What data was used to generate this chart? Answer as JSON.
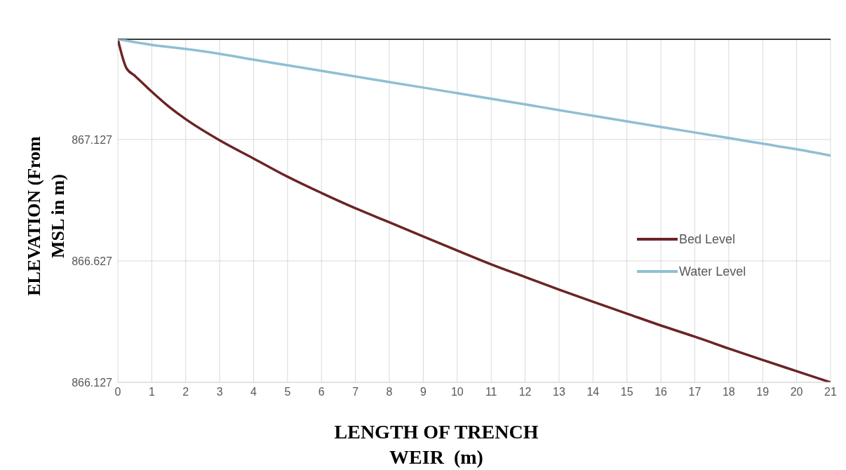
{
  "chart_data": {
    "type": "line",
    "xlabel": "LENGTH OF TRENCH WEIR  (m)",
    "ylabel": "ELEVATION (From MSL in m)",
    "xlim": [
      0,
      21
    ],
    "xticks": [
      0,
      1,
      2,
      3,
      4,
      5,
      6,
      7,
      8,
      9,
      10,
      11,
      12,
      13,
      14,
      15,
      16,
      17,
      18,
      19,
      20,
      21
    ],
    "ylim": [
      866.127,
      867.54
    ],
    "yticks": [
      866.127,
      866.627,
      867.127
    ],
    "grid": true,
    "legend": "right",
    "marker": "none",
    "line_style": "solid",
    "ref_lines": [
      {
        "axis": "y",
        "value": 867.54,
        "color": "#000000"
      }
    ],
    "series": [
      {
        "name": "Bed Level",
        "color": "#6b2426",
        "x": [
          0,
          0.25,
          0.5,
          1,
          1.5,
          2,
          3,
          4,
          5,
          6,
          7,
          8,
          9,
          10,
          11,
          12,
          13,
          14,
          15,
          16,
          17,
          18,
          19,
          20,
          21
        ],
        "values": [
          867.54,
          867.422,
          867.39,
          867.324,
          867.263,
          867.211,
          867.124,
          867.049,
          866.974,
          866.907,
          866.844,
          866.786,
          866.728,
          866.67,
          866.613,
          866.561,
          866.509,
          866.459,
          866.41,
          866.361,
          866.315,
          866.266,
          866.219,
          866.173,
          866.127
        ]
      },
      {
        "name": "Water Level",
        "color": "#8fbfd3",
        "x": [
          0,
          1,
          2,
          3,
          4,
          5,
          6,
          7,
          8,
          9,
          10,
          11,
          12,
          13,
          14,
          15,
          16,
          17,
          18,
          19,
          20,
          21
        ],
        "values": [
          867.54,
          867.517,
          867.5,
          867.48,
          867.456,
          867.433,
          867.41,
          867.387,
          867.364,
          867.341,
          867.318,
          867.295,
          867.272,
          867.248,
          867.225,
          867.202,
          867.179,
          867.156,
          867.133,
          867.11,
          867.087,
          867.061
        ]
      }
    ]
  }
}
